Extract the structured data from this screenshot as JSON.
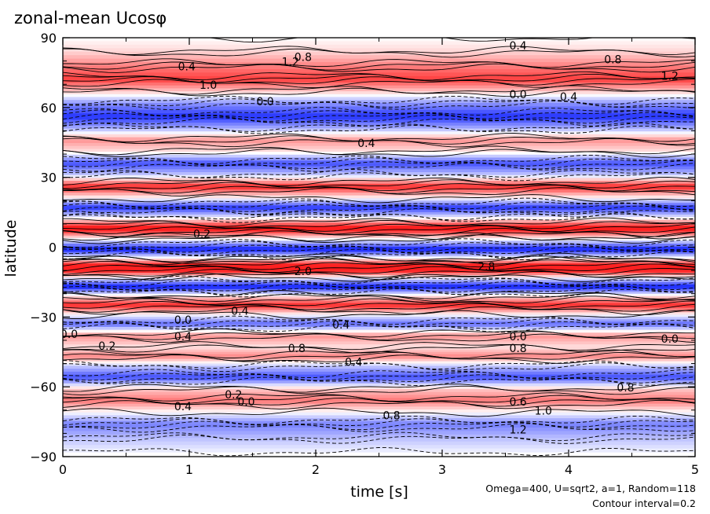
{
  "chart_data": {
    "type": "heatmap",
    "title": "zonal-mean Ucosφ",
    "xlabel": "time [s]",
    "ylabel": "latitude",
    "xlim": [
      0,
      5
    ],
    "ylim": [
      -90,
      90
    ],
    "xticks": [
      "0",
      "1",
      "2",
      "3",
      "4",
      "5"
    ],
    "yticks": [
      "90",
      "60",
      "30",
      "0",
      "−30",
      "−60",
      "−90"
    ],
    "xtick_values": [
      0,
      1,
      2,
      3,
      4,
      5
    ],
    "ytick_values": [
      90,
      60,
      30,
      0,
      -30,
      -60,
      -90
    ],
    "annotations": [
      "Omega=400, U=sqrt2, a=1, Random=118",
      "Contour interval=0.2"
    ],
    "colormap": {
      "positive": "#ff2020",
      "negative": "#2030ff",
      "zero": "#ffffff"
    },
    "contour_interval": 0.2,
    "bands": [
      {
        "lat": 90,
        "value": 0.0
      },
      {
        "lat": 84,
        "value": 0.3
      },
      {
        "lat": 78,
        "value": 0.9
      },
      {
        "lat": 72,
        "value": 1.4
      },
      {
        "lat": 67,
        "value": 0.4
      },
      {
        "lat": 62,
        "value": -0.8
      },
      {
        "lat": 56,
        "value": -1.6
      },
      {
        "lat": 51,
        "value": -0.6
      },
      {
        "lat": 46,
        "value": 0.8
      },
      {
        "lat": 41,
        "value": 0.2
      },
      {
        "lat": 36,
        "value": -1.4
      },
      {
        "lat": 31,
        "value": -0.4
      },
      {
        "lat": 26,
        "value": 1.6
      },
      {
        "lat": 21,
        "value": 0.0
      },
      {
        "lat": 17,
        "value": -1.6
      },
      {
        "lat": 13,
        "value": -0.2
      },
      {
        "lat": 8,
        "value": 2.0
      },
      {
        "lat": 4,
        "value": 0.2
      },
      {
        "lat": -1,
        "value": -1.8
      },
      {
        "lat": -5,
        "value": 0.2
      },
      {
        "lat": -9,
        "value": 2.4
      },
      {
        "lat": -13,
        "value": 0.0
      },
      {
        "lat": -17,
        "value": -1.8
      },
      {
        "lat": -21,
        "value": 0.2
      },
      {
        "lat": -25,
        "value": 1.6
      },
      {
        "lat": -29,
        "value": 0.0
      },
      {
        "lat": -33,
        "value": -1.2
      },
      {
        "lat": -38,
        "value": 0.8
      },
      {
        "lat": -43,
        "value": 0.2
      },
      {
        "lat": -47,
        "value": 0.9
      },
      {
        "lat": -51,
        "value": -0.4
      },
      {
        "lat": -56,
        "value": -1.4
      },
      {
        "lat": -61,
        "value": 0.4
      },
      {
        "lat": -66,
        "value": 1.0
      },
      {
        "lat": -71,
        "value": 0.0
      },
      {
        "lat": -76,
        "value": -1.0
      },
      {
        "lat": -82,
        "value": -0.5
      },
      {
        "lat": -88,
        "value": -0.1
      }
    ],
    "contour_labels": [
      {
        "x": 0.98,
        "y": 76,
        "text": "0.4"
      },
      {
        "x": 1.15,
        "y": 68,
        "text": "1.0"
      },
      {
        "x": 1.6,
        "y": 61,
        "text": "0.0"
      },
      {
        "x": 1.8,
        "y": 78,
        "text": "1.2"
      },
      {
        "x": 1.9,
        "y": 80,
        "text": "0.8"
      },
      {
        "x": 3.6,
        "y": 85,
        "text": "0.4"
      },
      {
        "x": 4.35,
        "y": 79,
        "text": "0.8"
      },
      {
        "x": 4.8,
        "y": 72,
        "text": "1.2"
      },
      {
        "x": 3.6,
        "y": 64,
        "text": "0.0"
      },
      {
        "x": 4.0,
        "y": 63,
        "text": "0.4"
      },
      {
        "x": 2.4,
        "y": 43,
        "text": "0.4"
      },
      {
        "x": 1.1,
        "y": 4,
        "text": "0.2"
      },
      {
        "x": 3.35,
        "y": -10,
        "text": "2.8"
      },
      {
        "x": 1.9,
        "y": -12,
        "text": "2.0"
      },
      {
        "x": 1.4,
        "y": -29,
        "text": "0.4"
      },
      {
        "x": 0.95,
        "y": -33,
        "text": "0.0"
      },
      {
        "x": 2.2,
        "y": -35,
        "text": "0.4"
      },
      {
        "x": 0.95,
        "y": -40,
        "text": "0.4"
      },
      {
        "x": 1.85,
        "y": -45,
        "text": "0.8"
      },
      {
        "x": 2.3,
        "y": -51,
        "text": "0.4"
      },
      {
        "x": 3.6,
        "y": -40,
        "text": "0.0"
      },
      {
        "x": 3.6,
        "y": -45,
        "text": "0.8"
      },
      {
        "x": 4.8,
        "y": -41,
        "text": "0.0"
      },
      {
        "x": 0.35,
        "y": -44,
        "text": "0.2"
      },
      {
        "x": 0.05,
        "y": -39,
        "text": "0.0"
      },
      {
        "x": 1.35,
        "y": -65,
        "text": "0.2"
      },
      {
        "x": 1.45,
        "y": -68,
        "text": "0.0"
      },
      {
        "x": 0.95,
        "y": -70,
        "text": "0.4"
      },
      {
        "x": 2.6,
        "y": -74,
        "text": "0.8"
      },
      {
        "x": 3.6,
        "y": -68,
        "text": "0.6"
      },
      {
        "x": 3.8,
        "y": -72,
        "text": "1.0"
      },
      {
        "x": 3.6,
        "y": -80,
        "text": "1.2"
      },
      {
        "x": 4.45,
        "y": -62,
        "text": "0.8"
      }
    ]
  }
}
